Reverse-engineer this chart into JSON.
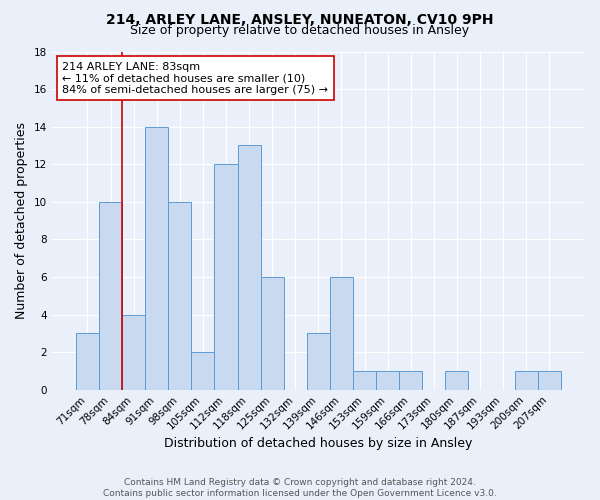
{
  "title": "214, ARLEY LANE, ANSLEY, NUNEATON, CV10 9PH",
  "subtitle": "Size of property relative to detached houses in Ansley",
  "xlabel": "Distribution of detached houses by size in Ansley",
  "ylabel": "Number of detached properties",
  "bin_labels": [
    "71sqm",
    "78sqm",
    "84sqm",
    "91sqm",
    "98sqm",
    "105sqm",
    "112sqm",
    "118sqm",
    "125sqm",
    "132sqm",
    "139sqm",
    "146sqm",
    "153sqm",
    "159sqm",
    "166sqm",
    "173sqm",
    "180sqm",
    "187sqm",
    "193sqm",
    "200sqm",
    "207sqm"
  ],
  "bar_heights": [
    3,
    10,
    4,
    14,
    10,
    2,
    12,
    13,
    6,
    0,
    3,
    6,
    1,
    1,
    1,
    0,
    1,
    0,
    0,
    1,
    1
  ],
  "bar_color": "#c9d9f0",
  "bar_edge_color": "#5b9bd5",
  "subject_line_color": "#cc0000",
  "annotation_text": "214 ARLEY LANE: 83sqm\n← 11% of detached houses are smaller (10)\n84% of semi-detached houses are larger (75) →",
  "annotation_box_color": "#ffffff",
  "annotation_box_edge": "#cc0000",
  "ylim": [
    0,
    18
  ],
  "yticks": [
    0,
    2,
    4,
    6,
    8,
    10,
    12,
    14,
    16,
    18
  ],
  "footer": "Contains HM Land Registry data © Crown copyright and database right 2024.\nContains public sector information licensed under the Open Government Licence v3.0.",
  "bg_color": "#eaf0fa",
  "grid_color": "#ffffff",
  "title_fontsize": 10,
  "subtitle_fontsize": 9,
  "axis_label_fontsize": 9,
  "tick_fontsize": 7.5,
  "annotation_fontsize": 8,
  "footer_fontsize": 6.5
}
